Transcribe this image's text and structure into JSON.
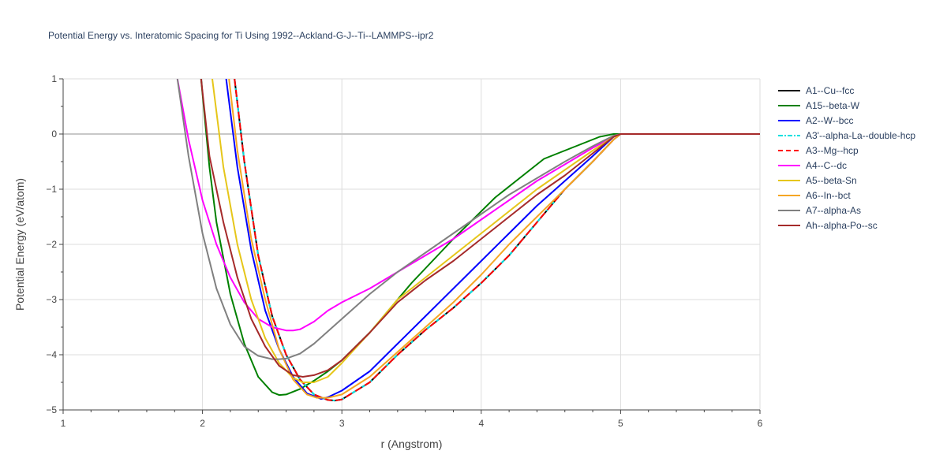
{
  "chart_data": {
    "type": "line",
    "title": "Potential Energy vs. Interatomic Spacing for Ti Using 1992--Ackland-G-J--Ti--LAMMPS--ipr2",
    "xlabel": "r (Angstrom)",
    "ylabel": "Potential Energy (eV/atom)",
    "xlim": [
      1,
      6
    ],
    "ylim": [
      -5,
      1
    ],
    "xticks": [
      1,
      2,
      3,
      4,
      5,
      6
    ],
    "xtick_labels": [
      "1",
      "2",
      "3",
      "4",
      "5",
      "6"
    ],
    "yticks": [
      1,
      0,
      -1,
      -2,
      -3,
      -4,
      -5
    ],
    "ytick_labels": [
      "1",
      "0",
      "−1",
      "−2",
      "−3",
      "−4",
      "−5"
    ],
    "grid": true,
    "legend_position": "right",
    "series": [
      {
        "name": "A1--Cu--fcc",
        "color": "#000000",
        "dash": "solid",
        "x": [
          2.23,
          2.3,
          2.4,
          2.5,
          2.6,
          2.7,
          2.8,
          2.9,
          2.95,
          3.0,
          3.2,
          3.4,
          3.6,
          3.8,
          4.0,
          4.2,
          4.4,
          4.6,
          4.8,
          4.95,
          5.0,
          6.0
        ],
        "y": [
          1.0,
          -0.5,
          -2.2,
          -3.3,
          -4.0,
          -4.45,
          -4.72,
          -4.82,
          -4.83,
          -4.81,
          -4.5,
          -4.0,
          -3.55,
          -3.15,
          -2.7,
          -2.2,
          -1.6,
          -1.0,
          -0.5,
          -0.1,
          0.0,
          0.0
        ]
      },
      {
        "name": "A15--beta-W",
        "color": "#008000",
        "dash": "solid",
        "x": [
          1.99,
          2.05,
          2.1,
          2.2,
          2.3,
          2.4,
          2.5,
          2.55,
          2.6,
          2.7,
          2.8,
          2.9,
          3.0,
          3.2,
          3.5,
          3.8,
          4.1,
          4.3,
          4.45,
          4.55,
          4.7,
          4.85,
          4.95,
          5.0,
          6.0
        ],
        "y": [
          1.0,
          -0.6,
          -1.6,
          -2.9,
          -3.8,
          -4.4,
          -4.68,
          -4.73,
          -4.72,
          -4.62,
          -4.47,
          -4.3,
          -4.1,
          -3.6,
          -2.7,
          -1.9,
          -1.15,
          -0.75,
          -0.45,
          -0.35,
          -0.2,
          -0.05,
          0.0,
          0.0,
          0.0
        ]
      },
      {
        "name": "A2--W--bcc",
        "color": "#0000ff",
        "dash": "solid",
        "x": [
          2.17,
          2.25,
          2.35,
          2.45,
          2.55,
          2.65,
          2.75,
          2.85,
          2.9,
          3.0,
          3.2,
          3.4,
          3.6,
          3.8,
          4.0,
          4.2,
          4.4,
          4.6,
          4.8,
          4.95,
          5.0,
          6.0
        ],
        "y": [
          1.0,
          -0.6,
          -2.1,
          -3.2,
          -3.9,
          -4.4,
          -4.7,
          -4.8,
          -4.77,
          -4.65,
          -4.3,
          -3.8,
          -3.3,
          -2.8,
          -2.3,
          -1.8,
          -1.3,
          -0.85,
          -0.4,
          -0.05,
          0.0,
          0.0
        ]
      },
      {
        "name": "A3'--alpha-La--double-hcp",
        "color": "#00e0e0",
        "dash": "dashdot",
        "x": [
          2.23,
          2.3,
          2.4,
          2.5,
          2.6,
          2.7,
          2.8,
          2.9,
          2.95,
          3.0,
          3.2,
          3.4,
          3.6,
          3.8,
          4.0,
          4.2,
          4.4,
          4.6,
          4.8,
          4.95,
          5.0,
          6.0
        ],
        "y": [
          1.0,
          -0.5,
          -2.2,
          -3.3,
          -4.0,
          -4.45,
          -4.72,
          -4.82,
          -4.83,
          -4.81,
          -4.5,
          -4.0,
          -3.55,
          -3.15,
          -2.7,
          -2.2,
          -1.6,
          -1.0,
          -0.5,
          -0.1,
          0.0,
          0.0
        ]
      },
      {
        "name": "A3--Mg--hcp",
        "color": "#ff0000",
        "dash": "dash",
        "x": [
          2.23,
          2.3,
          2.4,
          2.5,
          2.6,
          2.7,
          2.8,
          2.9,
          2.95,
          3.0,
          3.2,
          3.4,
          3.6,
          3.8,
          4.0,
          4.2,
          4.4,
          4.6,
          4.8,
          4.95,
          5.0,
          6.0
        ],
        "y": [
          1.0,
          -0.5,
          -2.2,
          -3.3,
          -4.0,
          -4.45,
          -4.72,
          -4.82,
          -4.83,
          -4.81,
          -4.5,
          -4.0,
          -3.55,
          -3.15,
          -2.7,
          -2.2,
          -1.6,
          -1.0,
          -0.5,
          -0.1,
          0.0,
          0.0
        ]
      },
      {
        "name": "A4--C--dc",
        "color": "#ff00ff",
        "dash": "solid",
        "x": [
          1.82,
          1.9,
          2.0,
          2.1,
          2.2,
          2.3,
          2.4,
          2.5,
          2.6,
          2.65,
          2.7,
          2.8,
          2.9,
          3.0,
          3.2,
          3.4,
          3.6,
          3.8,
          4.0,
          4.2,
          4.4,
          4.6,
          4.8,
          4.95,
          5.0,
          6.0
        ],
        "y": [
          1.0,
          -0.1,
          -1.2,
          -2.0,
          -2.6,
          -3.05,
          -3.35,
          -3.5,
          -3.56,
          -3.56,
          -3.54,
          -3.4,
          -3.2,
          -3.05,
          -2.8,
          -2.5,
          -2.2,
          -1.9,
          -1.55,
          -1.2,
          -0.85,
          -0.55,
          -0.25,
          -0.05,
          0.0,
          0.0
        ]
      },
      {
        "name": "A5--beta-Sn",
        "color": "#e6c619",
        "dash": "solid",
        "x": [
          2.07,
          2.15,
          2.25,
          2.35,
          2.45,
          2.55,
          2.65,
          2.72,
          2.8,
          2.9,
          3.0,
          3.2,
          3.4,
          3.6,
          3.8,
          4.0,
          4.2,
          4.4,
          4.6,
          4.8,
          4.95,
          5.0,
          6.0
        ],
        "y": [
          1.0,
          -0.6,
          -2.0,
          -3.0,
          -3.7,
          -4.15,
          -4.42,
          -4.5,
          -4.5,
          -4.4,
          -4.15,
          -3.6,
          -3.0,
          -2.6,
          -2.2,
          -1.8,
          -1.4,
          -1.0,
          -0.65,
          -0.3,
          -0.05,
          0.0,
          0.0
        ]
      },
      {
        "name": "A6--In--bct",
        "color": "#f5a623",
        "dash": "solid",
        "x": [
          2.19,
          2.25,
          2.35,
          2.45,
          2.55,
          2.65,
          2.75,
          2.82,
          2.9,
          3.0,
          3.2,
          3.4,
          3.6,
          3.8,
          4.0,
          4.2,
          4.4,
          4.6,
          4.8,
          4.95,
          5.0,
          6.0
        ],
        "y": [
          1.0,
          -0.3,
          -1.9,
          -3.0,
          -3.9,
          -4.45,
          -4.72,
          -4.78,
          -4.78,
          -4.72,
          -4.4,
          -3.95,
          -3.5,
          -3.05,
          -2.55,
          -2.0,
          -1.5,
          -1.0,
          -0.5,
          -0.1,
          0.0,
          0.0
        ]
      },
      {
        "name": "A7--alpha-As",
        "color": "#808080",
        "dash": "solid",
        "x": [
          1.82,
          1.9,
          2.0,
          2.1,
          2.2,
          2.3,
          2.4,
          2.5,
          2.55,
          2.6,
          2.7,
          2.8,
          3.0,
          3.2,
          3.4,
          3.6,
          3.8,
          4.0,
          4.2,
          4.4,
          4.6,
          4.8,
          4.95,
          5.0,
          6.0
        ],
        "y": [
          1.0,
          -0.4,
          -1.8,
          -2.8,
          -3.45,
          -3.85,
          -4.02,
          -4.08,
          -4.08,
          -4.07,
          -3.98,
          -3.8,
          -3.35,
          -2.9,
          -2.5,
          -2.15,
          -1.8,
          -1.45,
          -1.1,
          -0.8,
          -0.5,
          -0.22,
          -0.03,
          0.0,
          0.0
        ]
      },
      {
        "name": "Ah--alpha-Po--sc",
        "color": "#a52a2a",
        "dash": "solid",
        "x": [
          1.99,
          2.05,
          2.15,
          2.25,
          2.35,
          2.45,
          2.55,
          2.65,
          2.72,
          2.8,
          2.9,
          3.0,
          3.2,
          3.4,
          3.6,
          3.8,
          4.0,
          4.2,
          4.4,
          4.6,
          4.8,
          4.95,
          5.0,
          6.0
        ],
        "y": [
          1.0,
          -0.4,
          -1.6,
          -2.6,
          -3.35,
          -3.85,
          -4.2,
          -4.37,
          -4.4,
          -4.37,
          -4.28,
          -4.1,
          -3.6,
          -3.05,
          -2.65,
          -2.3,
          -1.9,
          -1.5,
          -1.1,
          -0.75,
          -0.35,
          -0.05,
          0.0,
          0.0
        ]
      }
    ]
  }
}
